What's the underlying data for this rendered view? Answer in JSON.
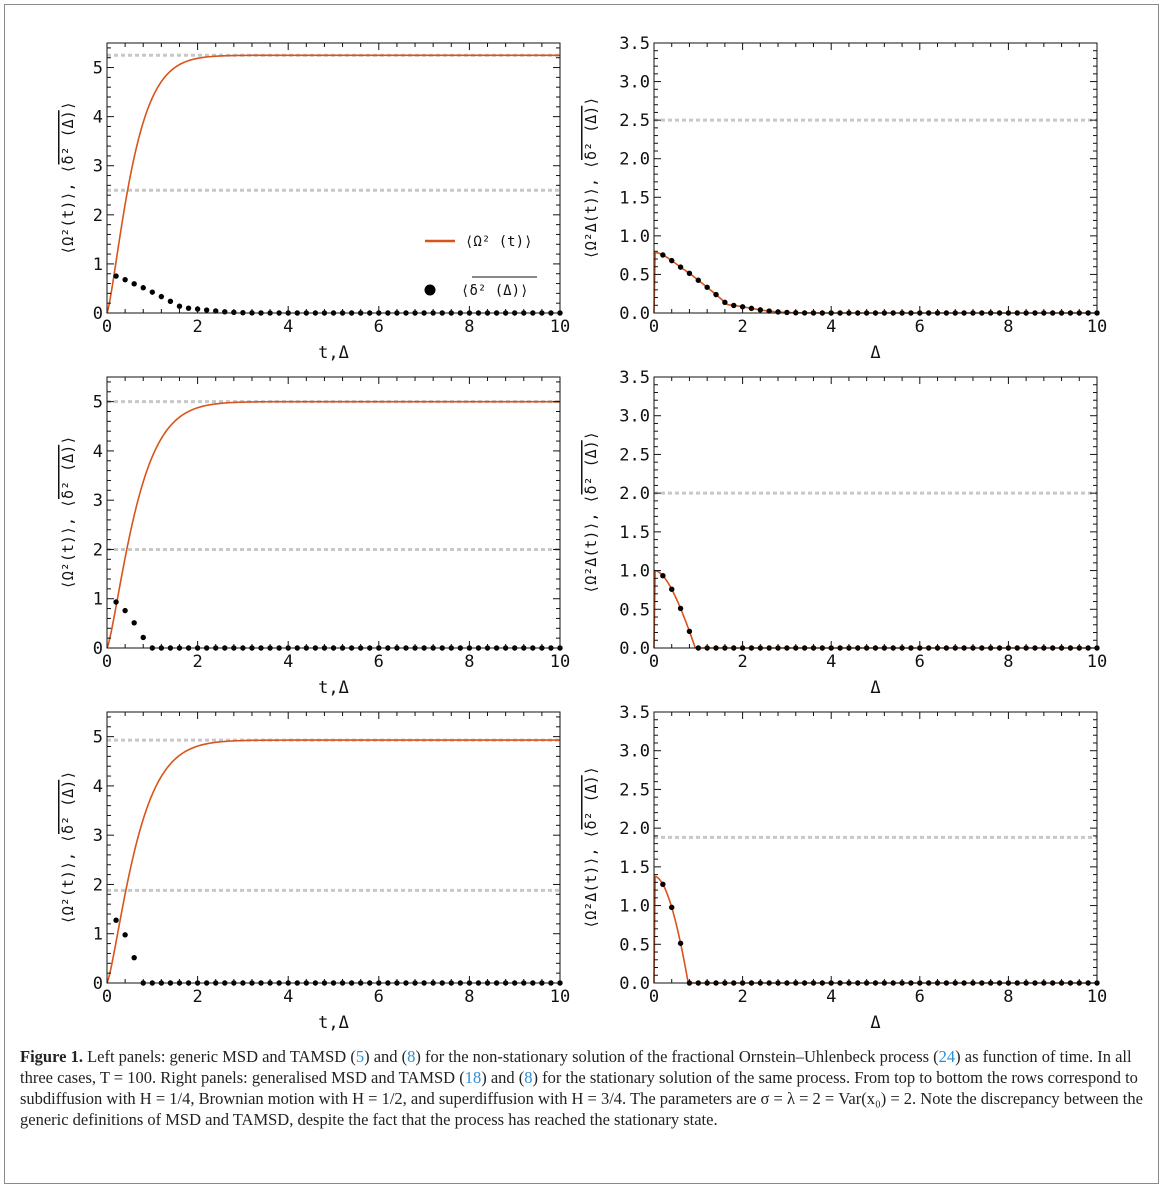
{
  "caption": {
    "label": "Figure 1.",
    "segments": [
      {
        "text": "  Left panels: generic MSD and TAMSD (",
        "ref": false
      },
      {
        "text": "5",
        "ref": true
      },
      {
        "text": ") and (",
        "ref": false
      },
      {
        "text": "8",
        "ref": true
      },
      {
        "text": ") for the non-stationary solution of the fractional Ornstein–Uhlenbeck process (",
        "ref": false
      },
      {
        "text": "24",
        "ref": true
      },
      {
        "text": ") as function of time. In all three cases, T = 100. Right panels: generalised MSD and TAMSD (",
        "ref": false
      },
      {
        "text": "18",
        "ref": true
      },
      {
        "text": ") and (",
        "ref": false
      },
      {
        "text": "8",
        "ref": true
      },
      {
        "text": ") for the stationary solution of the same process. From top to bottom the rows correspond to subdiffusion with H = 1/4, Brownian motion with H = 1/2, and superdiffusion with H = 3/4. The parameters are σ = λ = 2 = Var(x₀) = 2. Note the discrepancy between the generic definitions of MSD and TAMSD, despite the fact that the process has reached the stationary state.",
        "ref": false
      }
    ]
  },
  "colors": {
    "curve": "#d9541a",
    "dots": "#000000",
    "ref_line": "#c8c8c8",
    "frame": "#111111"
  },
  "legend": {
    "msd": "⟨Ω² (t)⟩",
    "tamsd_overline": "δ² (Δ)",
    "tamsd_brackets": [
      "⟨",
      "⟩"
    ],
    "placement": "middle-right of top-left panel"
  },
  "chart_data": [
    {
      "type": "line",
      "row": 1,
      "column": "left",
      "H": 0.25,
      "xlabel": "t,Δ",
      "ylabel_main": "⟨Ω²(t)⟩, ⟨",
      "ylabel_over": "δ² (Δ)",
      "ylabel_close": "⟩",
      "xlim": [
        0,
        10
      ],
      "ylim": [
        0,
        5.5
      ],
      "xticks": [
        "0",
        "2",
        "4",
        "6",
        "8",
        "10"
      ],
      "yticks": [
        "0",
        "1",
        "2",
        "3",
        "4",
        "5"
      ],
      "curve": {
        "name": "⟨Ω² (t)⟩",
        "model": "hurst",
        "plateau": 5.25,
        "rate": 1.8
      },
      "dots": {
        "name": "δ² (Δ)",
        "model": "fou_dots",
        "dt": 0.2,
        "sigma": 2,
        "lambda": 2,
        "H": 0.25,
        "scale": 1.0
      },
      "ref_lines": [
        5.25,
        2.5
      ],
      "legend": true
    },
    {
      "type": "line",
      "row": 1,
      "column": "right",
      "H": 0.25,
      "xlabel": "Δ",
      "ylabel_main": "⟨Ω²Δ(t)⟩, ⟨",
      "ylabel_over": "δ² (Δ)",
      "ylabel_close": "⟩",
      "xlim": [
        0,
        10
      ],
      "ylim": [
        0,
        3.5
      ],
      "xticks": [
        "0",
        "2",
        "4",
        "6",
        "8",
        "10"
      ],
      "yticks": [
        "0.0",
        "0.5",
        "1.0",
        "1.5",
        "2.0",
        "2.5",
        "3.0",
        "3.5"
      ],
      "curve": {
        "name": "⟨Ω²Δ(t)⟩",
        "model": "fou",
        "sigma": 2,
        "lambda": 2,
        "H": 0.25,
        "scale": 1.0
      },
      "dots": {
        "name": "δ² (Δ)",
        "model": "fou_dots",
        "dt": 0.2,
        "sigma": 2,
        "lambda": 2,
        "H": 0.25,
        "scale": 1.0
      },
      "ref_lines": [
        2.5
      ],
      "legend": false
    },
    {
      "type": "line",
      "row": 2,
      "column": "left",
      "H": 0.5,
      "xlabel": "t,Δ",
      "ylabel_main": "⟨Ω²(t)⟩, ⟨",
      "ylabel_over": "δ² (Δ)",
      "ylabel_close": "⟩",
      "xlim": [
        0,
        10
      ],
      "ylim": [
        0,
        5.5
      ],
      "xticks": [
        "0",
        "2",
        "4",
        "6",
        "8",
        "10"
      ],
      "yticks": [
        "0",
        "1",
        "2",
        "3",
        "4",
        "5"
      ],
      "curve": {
        "name": "⟨Ω² (t)⟩",
        "model": "hurst",
        "plateau": 5.0,
        "rate": 1.5
      },
      "dots": {
        "name": "δ² (Δ)",
        "model": "fou_dots",
        "dt": 0.2,
        "sigma": 2,
        "lambda": 2,
        "H": 0.5,
        "scale": 1.0
      },
      "ref_lines": [
        5.0,
        2.0
      ],
      "legend": false
    },
    {
      "type": "line",
      "row": 2,
      "column": "right",
      "H": 0.5,
      "xlabel": "Δ",
      "ylabel_main": "⟨Ω²Δ(t)⟩, ⟨",
      "ylabel_over": "δ² (Δ)",
      "ylabel_close": "⟩",
      "xlim": [
        0,
        10
      ],
      "ylim": [
        0,
        3.5
      ],
      "xticks": [
        "0",
        "2",
        "4",
        "6",
        "8",
        "10"
      ],
      "yticks": [
        "0.0",
        "0.5",
        "1.0",
        "1.5",
        "2.0",
        "2.5",
        "3.0",
        "3.5"
      ],
      "curve": {
        "name": "⟨Ω²Δ(t)⟩",
        "model": "fou",
        "sigma": 2,
        "lambda": 2,
        "H": 0.5,
        "scale": 1.0
      },
      "dots": {
        "name": "δ² (Δ)",
        "model": "fou_dots",
        "dt": 0.2,
        "sigma": 2,
        "lambda": 2,
        "H": 0.5,
        "scale": 1.0
      },
      "ref_lines": [
        2.0
      ],
      "legend": false
    },
    {
      "type": "line",
      "row": 3,
      "column": "left",
      "H": 0.75,
      "xlabel": "t,Δ",
      "ylabel_main": "⟨Ω²(t)⟩, ⟨",
      "ylabel_over": "δ² (Δ)",
      "ylabel_close": "⟩",
      "xlim": [
        0,
        10
      ],
      "ylim": [
        0,
        5.5
      ],
      "xticks": [
        "0",
        "2",
        "4",
        "6",
        "8",
        "10"
      ],
      "yticks": [
        "0",
        "1",
        "2",
        "3",
        "4",
        "5"
      ],
      "curve": {
        "name": "⟨Ω² (t)⟩",
        "model": "hurst",
        "plateau": 4.93,
        "rate": 1.5
      },
      "dots": {
        "name": "δ² (Δ)",
        "model": "fou_dots",
        "dt": 0.2,
        "sigma": 2,
        "lambda": 2,
        "H": 0.75,
        "scale": 1.02
      },
      "ref_lines": [
        4.93,
        1.88
      ],
      "legend": false
    },
    {
      "type": "line",
      "row": 3,
      "column": "right",
      "H": 0.75,
      "xlabel": "Δ",
      "ylabel_main": "⟨Ω²Δ(t)⟩, ⟨",
      "ylabel_over": "δ² (Δ)",
      "ylabel_close": "⟩",
      "xlim": [
        0,
        10
      ],
      "ylim": [
        0,
        3.5
      ],
      "xticks": [
        "0",
        "2",
        "4",
        "6",
        "8",
        "10"
      ],
      "yticks": [
        "0.0",
        "0.5",
        "1.0",
        "1.5",
        "2.0",
        "2.5",
        "3.0",
        "3.5"
      ],
      "curve": {
        "name": "⟨Ω²Δ(t)⟩",
        "model": "fou",
        "sigma": 2,
        "lambda": 2,
        "H": 0.75,
        "scale": 1.02
      },
      "dots": {
        "name": "δ² (Δ)",
        "model": "fou_dots",
        "dt": 0.2,
        "sigma": 2,
        "lambda": 2,
        "H": 0.75,
        "scale": 1.02
      },
      "ref_lines": [
        1.88
      ],
      "legend": false
    }
  ]
}
